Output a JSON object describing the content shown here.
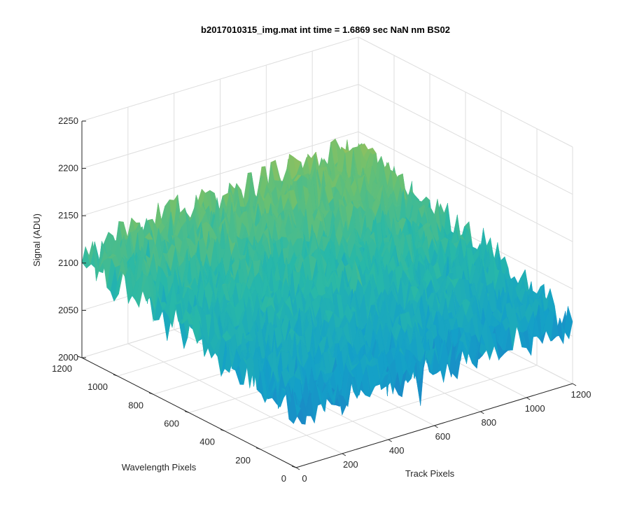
{
  "chart_data": {
    "type": "surface",
    "title": "b2017010315_img.mat int time = 1.6869 sec  NaN nm BS02",
    "xlabel": "Track Pixels",
    "ylabel": "Wavelength Pixels",
    "zlabel": "Signal (ADU)",
    "x_ticks": [
      "0",
      "200",
      "400",
      "600",
      "800",
      "1000",
      "1200"
    ],
    "y_ticks": [
      "0",
      "200",
      "400",
      "600",
      "800",
      "1000",
      "1200"
    ],
    "z_ticks": [
      "2000",
      "2050",
      "2100",
      "2150",
      "2200",
      "2250"
    ],
    "xlim": [
      0,
      1200
    ],
    "ylim": [
      0,
      1200
    ],
    "zlim": [
      2000,
      2250
    ],
    "grid": true,
    "colormap": [
      "#1f77c4",
      "#14a0c8",
      "#28b8a8",
      "#6cc070",
      "#b0c050",
      "#e8c040"
    ],
    "surface_summary": {
      "corner_levels": {
        "track_0_wl_0": 2060,
        "track_1200_wl_0": 2065,
        "track_0_wl_1200": 2110,
        "track_1200_wl_1200": 2135
      },
      "noise_amplitude": 22
    }
  }
}
